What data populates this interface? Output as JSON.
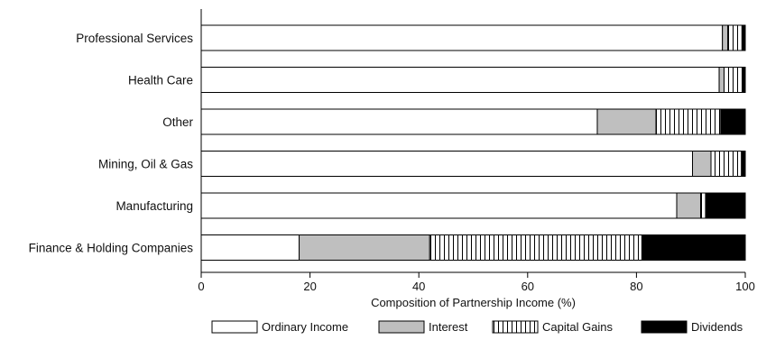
{
  "chart_data": {
    "type": "bar",
    "orientation": "horizontal",
    "stacked": true,
    "title": "",
    "xlabel": "Composition of Partnership Income (%)",
    "ylabel": "",
    "xlim": [
      0,
      100
    ],
    "x_ticks": [
      0,
      20,
      40,
      60,
      80,
      100
    ],
    "grid": false,
    "legend_position": "bottom",
    "categories": [
      "Professional Services",
      "Health Care",
      "Other",
      "Mining, Oil & Gas",
      "Manufacturing",
      "Finance & Holding Companies"
    ],
    "series": [
      {
        "name": "Ordinary Income",
        "fill": "#ffffff",
        "values": [
          95.8,
          95.2,
          72.8,
          90.3,
          87.4,
          18.0
        ]
      },
      {
        "name": "Interest",
        "fill": "#bfbfbf",
        "values": [
          1.0,
          0.9,
          10.8,
          3.4,
          4.4,
          24.0
        ]
      },
      {
        "name": "Capital Gains",
        "fill": "vertical-hatch",
        "values": [
          2.6,
          3.4,
          11.9,
          5.6,
          0.9,
          39.0
        ]
      },
      {
        "name": "Dividends",
        "fill": "#000000",
        "values": [
          0.6,
          0.5,
          4.5,
          0.7,
          7.3,
          19.0
        ]
      }
    ]
  }
}
